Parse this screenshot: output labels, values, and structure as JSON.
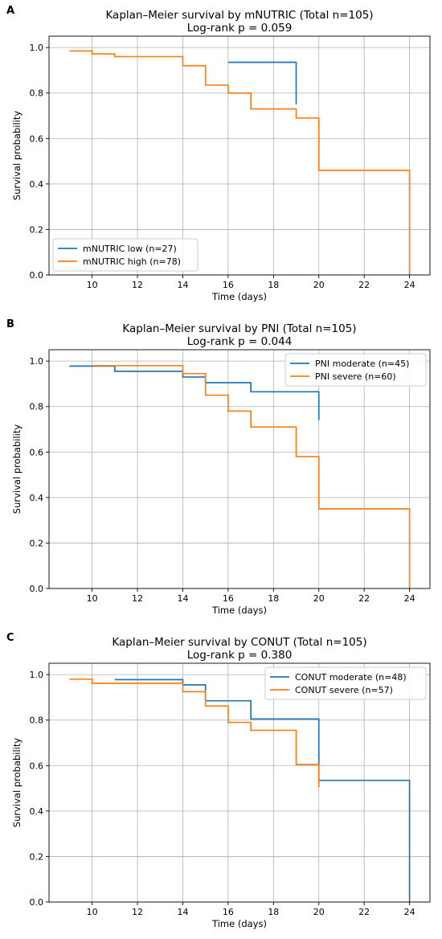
{
  "chart_data": [
    {
      "type": "line",
      "step": true,
      "panel_label": "A",
      "title": "Kaplan–Meier survival by mNUTRIC (Total n=105)",
      "subtitle": "Log-rank p = 0.059",
      "xlabel": "Time (days)",
      "ylabel": "Survival probability",
      "xlim": [
        8.1,
        24.9
      ],
      "ylim": [
        0.0,
        1.05
      ],
      "xticks": [
        10,
        12,
        14,
        16,
        18,
        20,
        22,
        24
      ],
      "yticks": [
        0.0,
        0.2,
        0.4,
        0.6,
        0.8,
        1.0
      ],
      "xtick_labels": [
        "10",
        "12",
        "14",
        "16",
        "18",
        "20",
        "22",
        "24"
      ],
      "ytick_labels": [
        "0.0",
        "0.2",
        "0.4",
        "0.6",
        "0.8",
        "1.0"
      ],
      "grid": true,
      "legend_position": "bottom-left",
      "series": [
        {
          "name": "mNUTRIC low (n=27)",
          "color": "#1f77b4",
          "x": [
            16,
            19,
            19
          ],
          "y": [
            0.935,
            0.935,
            0.75
          ]
        },
        {
          "name": "mNUTRIC high (n=78)",
          "color": "#ff7f0e",
          "x": [
            9,
            10,
            11,
            14,
            15,
            16,
            17,
            19,
            20,
            24,
            24
          ],
          "y": [
            0.985,
            0.972,
            0.96,
            0.92,
            0.835,
            0.8,
            0.73,
            0.69,
            0.46,
            0.46,
            0.0
          ]
        }
      ]
    },
    {
      "type": "line",
      "step": true,
      "panel_label": "B",
      "title": "Kaplan–Meier survival by PNI (Total n=105)",
      "subtitle": "Log-rank p = 0.044",
      "xlabel": "Time (days)",
      "ylabel": "Survival probability",
      "xlim": [
        8.1,
        24.9
      ],
      "ylim": [
        0.0,
        1.05
      ],
      "xticks": [
        10,
        12,
        14,
        16,
        18,
        20,
        22,
        24
      ],
      "yticks": [
        0.0,
        0.2,
        0.4,
        0.6,
        0.8,
        1.0
      ],
      "xtick_labels": [
        "10",
        "12",
        "14",
        "16",
        "18",
        "20",
        "22",
        "24"
      ],
      "ytick_labels": [
        "0.0",
        "0.2",
        "0.4",
        "0.6",
        "0.8",
        "1.0"
      ],
      "grid": true,
      "legend_position": "top-right",
      "series": [
        {
          "name": "PNI moderate (n=45)",
          "color": "#1f77b4",
          "x": [
            9,
            11,
            14,
            15,
            17,
            20,
            20
          ],
          "y": [
            0.978,
            0.955,
            0.93,
            0.905,
            0.865,
            0.865,
            0.74
          ]
        },
        {
          "name": "PNI severe (n=60)",
          "color": "#ff7f0e",
          "x": [
            10,
            14,
            15,
            16,
            17,
            19,
            20,
            24,
            24
          ],
          "y": [
            0.98,
            0.945,
            0.85,
            0.78,
            0.71,
            0.58,
            0.35,
            0.35,
            0.0
          ]
        }
      ]
    },
    {
      "type": "line",
      "step": true,
      "panel_label": "C",
      "title": "Kaplan–Meier survival by CONUT (Total n=105)",
      "subtitle": "Log-rank p = 0.380",
      "xlabel": "Time (days)",
      "ylabel": "Survival probability",
      "xlim": [
        8.1,
        24.9
      ],
      "ylim": [
        0.0,
        1.05
      ],
      "xticks": [
        10,
        12,
        14,
        16,
        18,
        20,
        22,
        24
      ],
      "yticks": [
        0.0,
        0.2,
        0.4,
        0.6,
        0.8,
        1.0
      ],
      "xtick_labels": [
        "10",
        "12",
        "14",
        "16",
        "18",
        "20",
        "22",
        "24"
      ],
      "ytick_labels": [
        "0.0",
        "0.2",
        "0.4",
        "0.6",
        "0.8",
        "1.0"
      ],
      "grid": true,
      "legend_position": "top-right",
      "series": [
        {
          "name": "CONUT moderate (n=48)",
          "color": "#1f77b4",
          "x": [
            11,
            14,
            15,
            17,
            20,
            24,
            24
          ],
          "y": [
            0.978,
            0.955,
            0.885,
            0.805,
            0.535,
            0.535,
            0.0
          ]
        },
        {
          "name": "CONUT severe (n=57)",
          "color": "#ff7f0e",
          "x": [
            9,
            10,
            14,
            15,
            16,
            17,
            19,
            20
          ],
          "y": [
            0.98,
            0.962,
            0.925,
            0.862,
            0.79,
            0.755,
            0.605,
            0.505
          ]
        }
      ]
    }
  ]
}
